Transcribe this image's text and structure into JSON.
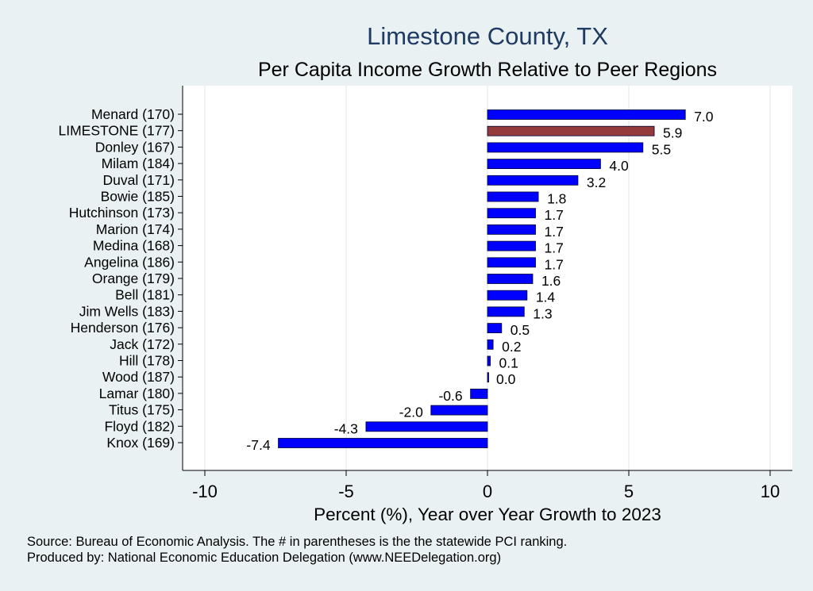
{
  "chart_data": {
    "type": "bar",
    "orientation": "horizontal",
    "title": "Limestone County, TX",
    "subtitle": "Per Capita Income Growth Relative to Peer Regions",
    "xlabel": "Percent (%), Year over Year Growth to 2023",
    "xlim": [
      -10.7,
      10.7
    ],
    "xticks": [
      "-10",
      "-5",
      "0",
      "5",
      "10"
    ],
    "xtick_values": [
      -10,
      -5,
      0,
      5,
      10
    ],
    "grid": true,
    "categories": [
      "Menard (170)",
      "LIMESTONE (177)",
      "Donley (167)",
      "Milam (184)",
      "Duval (171)",
      "Bowie (185)",
      "Hutchinson (173)",
      "Marion (174)",
      "Medina (168)",
      "Angelina (186)",
      "Orange (179)",
      "Bell (181)",
      "Jim Wells (183)",
      "Henderson (176)",
      "Jack (172)",
      "Hill (178)",
      "Wood (187)",
      "Lamar (180)",
      "Titus (175)",
      "Floyd (182)",
      "Knox (169)"
    ],
    "values": [
      7.0,
      5.9,
      5.5,
      4.0,
      3.2,
      1.8,
      1.7,
      1.7,
      1.7,
      1.7,
      1.6,
      1.4,
      1.3,
      0.5,
      0.2,
      0.1,
      0.0,
      -0.6,
      -2.0,
      -4.3,
      -7.4
    ],
    "value_labels": [
      "7.0",
      "5.9",
      "5.5",
      "4.0",
      "3.2",
      "1.8",
      "1.7",
      "1.7",
      "1.7",
      "1.7",
      "1.6",
      "1.4",
      "1.3",
      "0.5",
      "0.2",
      "0.1",
      "0.0",
      "-0.6",
      "-2.0",
      "-4.3",
      "-7.4"
    ],
    "highlight_index": 1,
    "colors": {
      "default_bar": "#0000ff",
      "highlight_bar": "#943a3c",
      "bar_edge": "#000033",
      "grid": "#e3ebee",
      "plot_bg": "#ffffff"
    }
  },
  "footer": {
    "source": "Source: Bureau of Economic Analysis. The # in parentheses is the the statewide PCI ranking.",
    "producer": "Produced by: National Economic Education Delegation (www.NEEDelegation.org)"
  }
}
